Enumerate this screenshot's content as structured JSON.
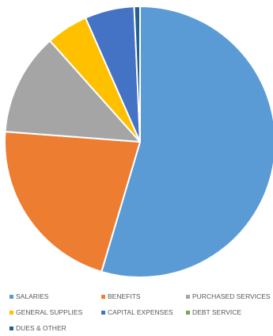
{
  "chart_data": {
    "type": "pie",
    "start_angle_deg": 0,
    "direction": "clockwise",
    "slices": [
      {
        "label": "SALARIES",
        "value": 54.6,
        "color": "#5B9BD5"
      },
      {
        "label": "BENEFITS",
        "value": 21.6,
        "color": "#ED7D31"
      },
      {
        "label": "PURCHASED SERVICES",
        "value": 12.2,
        "color": "#A5A5A5"
      },
      {
        "label": "GENERAL SUPPLIES",
        "value": 5.0,
        "color": "#FFC000"
      },
      {
        "label": "CAPITAL EXPENSES",
        "value": 5.9,
        "color": "#4472C4"
      },
      {
        "label": "DEBT SERVICE",
        "value": 0.0,
        "color": "#70AD47"
      },
      {
        "label": "DUES & OTHER",
        "value": 0.7,
        "color": "#255E91"
      }
    ],
    "legend_position": "bottom"
  }
}
